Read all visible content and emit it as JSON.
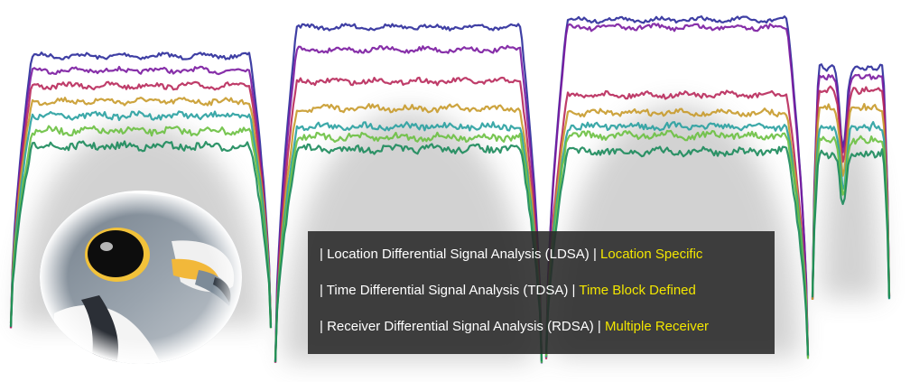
{
  "colors": {
    "background": "#ffffff",
    "highlight": "#f2e600",
    "panel": "#282828",
    "trace_colors": [
      "#2a2a9a",
      "#7a1aa0",
      "#b8285a",
      "#c89a2a",
      "#28a0a0",
      "#6ac040",
      "#1a8a5a"
    ]
  },
  "image": {
    "subject": "falcon-head-photo",
    "signal_traces": "spectral-signal-traces"
  },
  "info_box": {
    "lines": [
      {
        "prefix": "| ",
        "text": "Location Differential Signal Analysis (LDSA)",
        "sep": " | ",
        "highlight": "Location Specific"
      },
      {
        "prefix": "| ",
        "text": "Time Differential Signal Analysis (TDSA)",
        "sep": " | ",
        "highlight": "Time Block Defined"
      },
      {
        "prefix": "| ",
        "text": "Receiver Differential Signal Analysis (RDSA)",
        "sep": " | ",
        "highlight": "Multiple Receiver"
      }
    ]
  }
}
